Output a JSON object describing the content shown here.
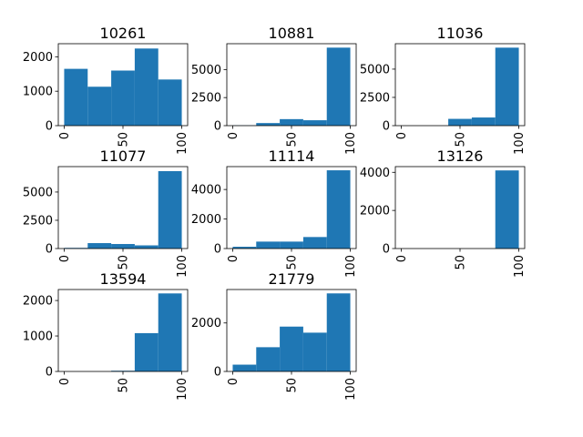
{
  "bar_color": "#1f77b4",
  "chart_data": [
    {
      "type": "bar",
      "title": "10261",
      "bin_edges": [
        0,
        20,
        40,
        60,
        80,
        100
      ],
      "values": [
        1650,
        1130,
        1600,
        2240,
        1340
      ],
      "xlim": [
        0,
        100
      ],
      "ylim": [
        0,
        2380
      ],
      "xticks": [
        {
          "v": 0,
          "label": "0"
        },
        {
          "v": 50,
          "label": "50"
        },
        {
          "v": 100,
          "label": "100"
        }
      ],
      "yticks": [
        {
          "v": 0,
          "label": "0"
        },
        {
          "v": 1000,
          "label": "1000"
        },
        {
          "v": 2000,
          "label": "2000"
        }
      ]
    },
    {
      "type": "bar",
      "title": "10881",
      "bin_edges": [
        0,
        20,
        40,
        60,
        80,
        100
      ],
      "values": [
        20,
        230,
        580,
        480,
        6950
      ],
      "xlim": [
        0,
        100
      ],
      "ylim": [
        0,
        7300
      ],
      "xticks": [
        {
          "v": 0,
          "label": "0"
        },
        {
          "v": 50,
          "label": "50"
        },
        {
          "v": 100,
          "label": "100"
        }
      ],
      "yticks": [
        {
          "v": 0,
          "label": "0"
        },
        {
          "v": 2500,
          "label": "2500"
        },
        {
          "v": 5000,
          "label": "5000"
        }
      ]
    },
    {
      "type": "bar",
      "title": "11036",
      "bin_edges": [
        0,
        20,
        40,
        60,
        80,
        100
      ],
      "values": [
        0,
        0,
        600,
        720,
        6900
      ],
      "xlim": [
        0,
        100
      ],
      "ylim": [
        0,
        7250
      ],
      "xticks": [
        {
          "v": 0,
          "label": "0"
        },
        {
          "v": 50,
          "label": "50"
        },
        {
          "v": 100,
          "label": "100"
        }
      ],
      "yticks": [
        {
          "v": 0,
          "label": "0"
        },
        {
          "v": 2500,
          "label": "2500"
        },
        {
          "v": 5000,
          "label": "5000"
        }
      ]
    },
    {
      "type": "bar",
      "title": "11077",
      "bin_edges": [
        0,
        20,
        40,
        60,
        80,
        100
      ],
      "values": [
        60,
        480,
        400,
        280,
        6850
      ],
      "xlim": [
        0,
        100
      ],
      "ylim": [
        0,
        7250
      ],
      "xticks": [
        {
          "v": 0,
          "label": "0"
        },
        {
          "v": 50,
          "label": "50"
        },
        {
          "v": 100,
          "label": "100"
        }
      ],
      "yticks": [
        {
          "v": 0,
          "label": "0"
        },
        {
          "v": 2500,
          "label": "2500"
        },
        {
          "v": 5000,
          "label": "5000"
        }
      ]
    },
    {
      "type": "bar",
      "title": "11114",
      "bin_edges": [
        0,
        20,
        40,
        60,
        80,
        100
      ],
      "values": [
        120,
        470,
        470,
        780,
        5300
      ],
      "xlim": [
        0,
        100
      ],
      "ylim": [
        0,
        5550
      ],
      "xticks": [
        {
          "v": 0,
          "label": "0"
        },
        {
          "v": 50,
          "label": "50"
        },
        {
          "v": 100,
          "label": "100"
        }
      ],
      "yticks": [
        {
          "v": 0,
          "label": "0"
        },
        {
          "v": 2000,
          "label": "2000"
        },
        {
          "v": 4000,
          "label": "4000"
        }
      ]
    },
    {
      "type": "bar",
      "title": "13126",
      "bin_edges": [
        0,
        20,
        40,
        60,
        80,
        100
      ],
      "values": [
        0,
        0,
        0,
        0,
        4100
      ],
      "xlim": [
        0,
        100
      ],
      "ylim": [
        0,
        4300
      ],
      "xticks": [
        {
          "v": 0,
          "label": "0"
        },
        {
          "v": 50,
          "label": "50"
        },
        {
          "v": 100,
          "label": "100"
        }
      ],
      "yticks": [
        {
          "v": 0,
          "label": "0"
        },
        {
          "v": 2000,
          "label": "2000"
        },
        {
          "v": 4000,
          "label": "4000"
        }
      ]
    },
    {
      "type": "bar",
      "title": "13594",
      "bin_edges": [
        0,
        20,
        40,
        60,
        80,
        100
      ],
      "values": [
        0,
        0,
        20,
        1080,
        2200
      ],
      "xlim": [
        0,
        100
      ],
      "ylim": [
        0,
        2310
      ],
      "xticks": [
        {
          "v": 0,
          "label": "0"
        },
        {
          "v": 50,
          "label": "50"
        },
        {
          "v": 100,
          "label": "100"
        }
      ],
      "yticks": [
        {
          "v": 0,
          "label": "0"
        },
        {
          "v": 1000,
          "label": "1000"
        },
        {
          "v": 2000,
          "label": "2000"
        }
      ]
    },
    {
      "type": "bar",
      "title": "21779",
      "bin_edges": [
        0,
        20,
        40,
        60,
        80,
        100
      ],
      "values": [
        280,
        1000,
        1850,
        1600,
        3220
      ],
      "xlim": [
        0,
        100
      ],
      "ylim": [
        0,
        3380
      ],
      "xticks": [
        {
          "v": 0,
          "label": "0"
        },
        {
          "v": 50,
          "label": "50"
        },
        {
          "v": 100,
          "label": "100"
        }
      ],
      "yticks": [
        {
          "v": 0,
          "label": "0"
        },
        {
          "v": 2000,
          "label": "2000"
        }
      ]
    }
  ]
}
